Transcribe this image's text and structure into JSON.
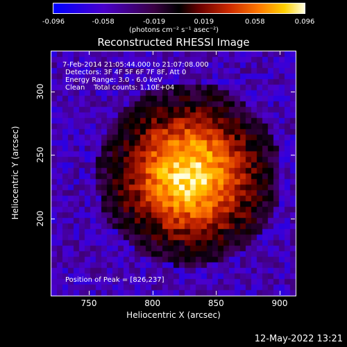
{
  "chart_data": {
    "type": "heatmap",
    "title": "Reconstructed RHESSI Image",
    "xlabel": "Heliocentric X (arcsec)",
    "ylabel": "Heliocentric Y (arcsec)",
    "xlim": [
      720,
      912
    ],
    "ylim": [
      140,
      332
    ],
    "xticks": [
      "750",
      "800",
      "850",
      "900"
    ],
    "yticks": [
      "200",
      "250",
      "300"
    ],
    "colorbar": {
      "ticks": [
        "-0.096",
        "-0.058",
        "-0.019",
        "0.019",
        "0.058",
        "0.096"
      ],
      "range": [
        -0.096,
        0.096
      ],
      "unit": "(photons cm⁻² s⁻¹ asec⁻²)"
    },
    "info_lines": [
      "7-Feb-2014 21:05:44.000 to 21:07:08.000",
      "Detectors: 3F 4F 5F 6F 7F 8F, Att 0",
      "Energy Range: 3.0 - 6.0 keV",
      "Clean    Total counts: 1.10E+04"
    ],
    "peak_label": "Position of Peak = [826,237]",
    "peak": [
      826,
      237
    ]
  },
  "footer": {
    "date": "12-May-2022 13:21"
  }
}
